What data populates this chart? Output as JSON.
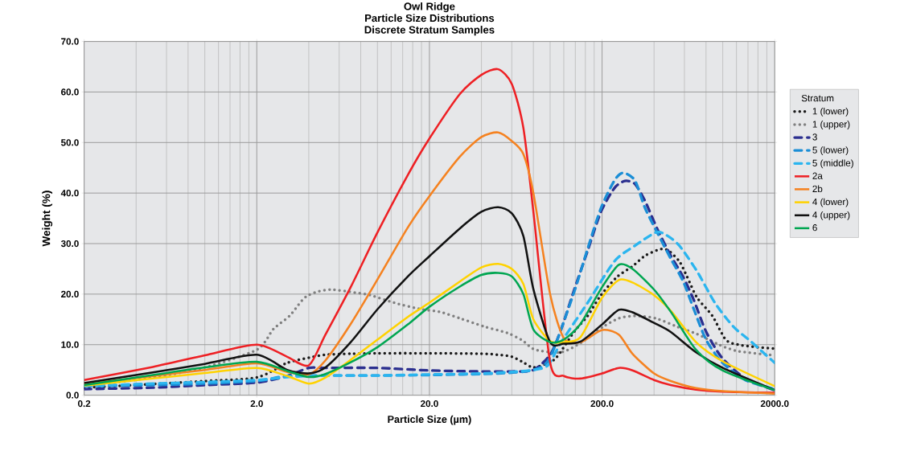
{
  "chart_data": {
    "type": "line",
    "title": "Owl Ridge",
    "subtitle": "Particle Size Distributions",
    "annotations": [
      "Discrete Stratum Samples"
    ],
    "xlabel": "Particle Size (µm)",
    "ylabel": "Weight (%)",
    "legend_title": "Stratum",
    "log": "x",
    "grid": true,
    "legend": "right",
    "xlim": [
      0.2,
      2000
    ],
    "ylim": [
      0,
      70
    ],
    "xticks": [
      0.2,
      {
        "value": 2,
        "label": "2.0"
      },
      {
        "value": 20,
        "label": "20.0"
      },
      {
        "value": 200,
        "label": "200.0"
      },
      {
        "value": 2000,
        "label": "2000.0"
      }
    ],
    "yticks": [
      {
        "value": 0,
        "label": "0.0"
      },
      {
        "value": 10,
        "label": "10.0"
      },
      {
        "value": 20,
        "label": "20.0"
      },
      {
        "value": 30,
        "label": "30.0"
      },
      {
        "value": 40,
        "label": "40.0"
      },
      {
        "value": 50,
        "label": "50.0"
      },
      {
        "value": 60,
        "label": "60.0"
      },
      {
        "value": 70,
        "label": "70.0"
      }
    ],
    "series": [
      {
        "name": "1 (lower)",
        "color": "#1a1a1a",
        "line_style": "dotted",
        "x": [
          0.2,
          0.5,
          1,
          2,
          3,
          4,
          5,
          7,
          10,
          20,
          40,
          50,
          60,
          70,
          80,
          100,
          112,
          138,
          165,
          197,
          244,
          300,
          355,
          435,
          485,
          560,
          620,
          710,
          870,
          1040,
          1230,
          1580,
          2000
        ],
        "values": [
          1.5,
          2.2,
          2.8,
          3.5,
          6.4,
          7.4,
          8.0,
          8.2,
          8.3,
          8.3,
          8.2,
          8.0,
          7.6,
          6.5,
          5.5,
          6.5,
          8.0,
          12.6,
          15.7,
          19.8,
          23.4,
          25.5,
          27.6,
          28.9,
          28.6,
          26.5,
          23.5,
          19.3,
          15.7,
          11.0,
          10.0,
          9.5,
          9.2
        ]
      },
      {
        "name": "1 (upper)",
        "color": "#808080",
        "line_style": "dotted",
        "x": [
          0.2,
          0.5,
          1,
          2,
          2.5,
          3.1,
          3.6,
          3.9,
          4.4,
          5.4,
          7.4,
          9.1,
          12.5,
          17.9,
          22.9,
          30.1,
          41.3,
          56.6,
          69.3,
          82,
          116,
          153,
          204,
          250,
          310,
          410,
          540,
          710,
          950,
          1230,
          2000
        ],
        "values": [
          1.8,
          3.5,
          5.5,
          9.0,
          13.1,
          15.7,
          18.5,
          19.6,
          20.4,
          20.9,
          20.3,
          19.8,
          18.3,
          17.0,
          16.5,
          15.2,
          13.6,
          12.3,
          10.8,
          9.0,
          8.5,
          10.5,
          13.6,
          15.2,
          15.7,
          15.2,
          13.6,
          12.1,
          10.0,
          8.7,
          7.9
        ]
      },
      {
        "name": "3",
        "color": "#2b2f8f",
        "line_style": "dashed",
        "x": [
          0.2,
          0.5,
          1,
          2,
          3,
          4,
          5,
          10,
          20,
          40,
          60,
          80,
          100,
          116,
          138,
          165,
          197,
          236,
          271,
          310,
          355,
          420,
          500,
          590,
          680,
          800,
          990,
          1350,
          2000
        ],
        "values": [
          1.2,
          1.5,
          2.0,
          2.5,
          3.8,
          5.4,
          5.4,
          5.4,
          4.9,
          4.7,
          4.7,
          5.0,
          8.0,
          13.1,
          20.9,
          28.6,
          36.3,
          41.0,
          42.4,
          41.8,
          38.4,
          32.7,
          27.6,
          23.4,
          18.8,
          12.6,
          7.4,
          3.3,
          1.0
        ]
      },
      {
        "name": "5 (lower)",
        "color": "#1b8ed6",
        "line_style": "dashed",
        "x": [
          0.2,
          0.5,
          1,
          2,
          3,
          5,
          10,
          20,
          50,
          80,
          100,
          138,
          165,
          197,
          236,
          265,
          310,
          355,
          420,
          500,
          590,
          680,
          800,
          990,
          1350,
          2000
        ],
        "values": [
          1.8,
          2.0,
          2.3,
          2.8,
          3.8,
          3.9,
          3.9,
          4.0,
          4.3,
          5.0,
          7.5,
          20.5,
          29,
          37,
          42.5,
          44,
          42.5,
          37,
          32,
          27,
          22.5,
          17,
          11,
          6.5,
          3,
          1.2
        ]
      },
      {
        "name": "5 (middle)",
        "color": "#2bb5ef",
        "line_style": "dashed",
        "x": [
          0.2,
          0.5,
          1,
          2,
          3,
          4,
          5,
          10,
          20,
          40,
          60,
          80,
          97,
          116,
          165,
          236,
          310,
          410,
          470,
          560,
          710,
          900,
          1150,
          1470,
          2000
        ],
        "values": [
          1.8,
          2.3,
          2.6,
          3.0,
          3.6,
          3.8,
          3.9,
          3.9,
          4.1,
          4.3,
          4.6,
          5.0,
          5.9,
          10.5,
          18.3,
          26.5,
          29.6,
          32.2,
          31.7,
          29.6,
          24.5,
          18.3,
          13.6,
          10.5,
          6.4
        ]
      },
      {
        "name": "2a",
        "color": "#ee2024",
        "line_style": "solid",
        "x": [
          0.2,
          0.5,
          1,
          2,
          3,
          4,
          5,
          7,
          10,
          15,
          20,
          30,
          40,
          50,
          60,
          70,
          80,
          100,
          120,
          150,
          200,
          250,
          300,
          400,
          500,
          700,
          1000,
          2000
        ],
        "values": [
          3.0,
          5.6,
          7.9,
          10.0,
          7.6,
          5.9,
          12,
          21.4,
          32.2,
          43.6,
          50.8,
          59.6,
          63.4,
          64.5,
          61.6,
          52.9,
          36.3,
          6.5,
          3.8,
          3.3,
          4.3,
          5.4,
          4.9,
          3.0,
          2.0,
          1.1,
          0.7,
          0.5
        ]
      },
      {
        "name": "2b",
        "color": "#f58220",
        "line_style": "solid",
        "x": [
          0.2,
          0.5,
          1,
          2,
          3,
          4,
          5,
          7,
          10,
          15,
          20,
          30,
          40,
          50,
          60,
          70,
          80,
          100,
          120,
          150,
          200,
          250,
          300,
          400,
          500,
          700,
          1000,
          2000
        ],
        "values": [
          2.2,
          3.8,
          5.0,
          6.3,
          4.6,
          4.1,
          6.9,
          14.1,
          22.9,
          33.2,
          39.4,
          47.2,
          51.1,
          52.0,
          50.3,
          47.7,
          40,
          20,
          11.3,
          10.5,
          12.9,
          12,
          8.2,
          4.3,
          2.8,
          1.4,
          0.8,
          0.3
        ]
      },
      {
        "name": "4 (lower)",
        "color": "#ffd200",
        "line_style": "solid",
        "x": [
          0.2,
          0.5,
          1,
          2,
          3,
          4,
          5,
          7,
          10,
          15,
          20,
          30,
          40,
          50,
          60,
          70,
          80,
          100,
          120,
          150,
          200,
          250,
          300,
          400,
          500,
          700,
          1000,
          2000
        ],
        "values": [
          1.9,
          3.3,
          4.4,
          5.4,
          3.8,
          2.3,
          3.5,
          7,
          11,
          15.5,
          18.3,
          22.5,
          25.3,
          26,
          25,
          22,
          15,
          10.7,
          10.5,
          11.5,
          19.3,
          22.8,
          22.3,
          19.8,
          16.7,
          10.5,
          6.7,
          1.8
        ]
      },
      {
        "name": "4 (upper)",
        "color": "#111111",
        "line_style": "solid",
        "x": [
          0.2,
          0.5,
          1,
          2,
          3,
          4,
          5,
          7,
          10,
          15,
          20,
          30,
          40,
          50,
          60,
          70,
          80,
          100,
          120,
          150,
          200,
          250,
          300,
          400,
          500,
          700,
          1000,
          2000
        ],
        "values": [
          2.4,
          4.5,
          6.2,
          8.0,
          5.0,
          4.3,
          5.5,
          10.5,
          17,
          23.5,
          27.5,
          33,
          36.3,
          37.2,
          36,
          31.5,
          21,
          10.5,
          10.2,
          10.6,
          14,
          16.9,
          16.4,
          14.3,
          12.5,
          8.5,
          5.4,
          1.0
        ]
      },
      {
        "name": "6",
        "color": "#00a651",
        "line_style": "solid",
        "x": [
          0.2,
          0.5,
          1,
          2,
          3,
          4,
          5,
          7,
          10,
          15,
          20,
          30,
          40,
          50,
          60,
          70,
          80,
          100,
          120,
          150,
          200,
          250,
          300,
          400,
          500,
          700,
          1000,
          2000
        ],
        "values": [
          2.0,
          4.0,
          5.5,
          6.6,
          4.8,
          3.6,
          4.2,
          6.5,
          9.5,
          14,
          17.5,
          21.5,
          23.8,
          24.2,
          23.5,
          20,
          13,
          10.5,
          11,
          14.1,
          21.4,
          25.8,
          25,
          20.9,
          16.5,
          9,
          4.9,
          1.0
        ]
      }
    ]
  }
}
